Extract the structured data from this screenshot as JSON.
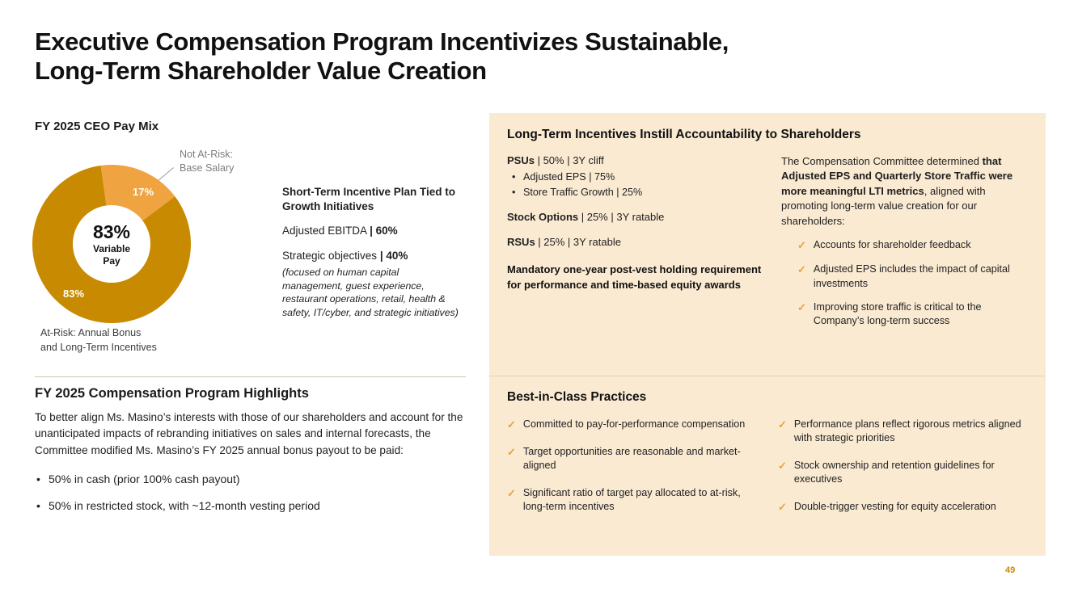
{
  "colors": {
    "gold_dark": "#C88A00",
    "gold_light": "#F0A441",
    "panel_bg": "#FAEAD2",
    "check": "#E8A33D"
  },
  "slide": {
    "title_line1": "Executive Compensation Program Incentivizes Sustainable,",
    "title_line2": "Long-Term Shareholder Value Creation",
    "page_number": "49"
  },
  "pay_mix": {
    "heading": "FY 2025 CEO Pay Mix",
    "not_at_risk_label": "Not At-Risk:\nBase Salary",
    "at_risk_label": "At-Risk: Annual Bonus\nand Long-Term Incentives",
    "slice_small_pct": "17%",
    "slice_main_pct": "83%",
    "center_value": "83%",
    "center_caption": "Variable\nPay"
  },
  "chart_data": {
    "type": "pie",
    "title": "FY 2025 CEO Pay Mix",
    "labels": [
      "At-Risk: Annual Bonus and Long-Term Incentives",
      "Not At-Risk: Base Salary"
    ],
    "values": [
      83,
      17
    ],
    "colors": [
      "#C88A00",
      "#F0A441"
    ],
    "donut": true,
    "center_text": "83% Variable Pay",
    "legend_position": "none"
  },
  "short_term_plan": {
    "heading": "Short-Term Incentive Plan Tied to Growth Initiatives",
    "items": [
      {
        "label": "Adjusted EBITDA ",
        "bold": "| 60%"
      },
      {
        "label": "Strategic objectives ",
        "bold": "| 40%"
      }
    ],
    "note": "(focused on human capital management, guest experience, restaurant operations, retail, health & safety, IT/cyber, and strategic initiatives)"
  },
  "highlights": {
    "heading": "FY 2025 Compensation Program Highlights",
    "intro": "To better align Ms. Masino’s interests with those of our shareholders and account for the unanticipated impacts of rebranding initiatives on sales and internal forecasts, the Committee modified Ms. Masino’s FY 2025 annual bonus payout to be paid:",
    "bullets": [
      "50% in cash (prior 100% cash payout)",
      "50% in restricted stock, with ~12-month vesting period"
    ]
  },
  "lti_panel": {
    "heading": "Long-Term Incentives Instill Accountability to Shareholders",
    "psus_label": "PSUs",
    "psus_rest": " | 50%  |  3Y cliff",
    "psu_bullets": [
      "Adjusted EPS | 75%",
      "Store Traffic Growth | 25%"
    ],
    "options_label": "Stock Options",
    "options_rest": " | 25% | 3Y ratable",
    "rsus_label": "RSUs",
    "rsus_rest": " | 25% | 3Y ratable",
    "mandatory_note": "Mandatory one-year post-vest holding requirement for performance and time-based equity awards",
    "committee_pre": "The Compensation Committee determined ",
    "committee_bold": "that Adjusted EPS and Quarterly Store Traffic were more meaningful LTI metrics",
    "committee_post": ", aligned with promoting long-term value creation for our shareholders:",
    "check_glyph": "✓",
    "checks": [
      "Accounts for shareholder feedback",
      "Adjusted EPS includes the impact of capital investments",
      "Improving store traffic is critical to the Company’s long-term success"
    ]
  },
  "best_practices": {
    "heading": "Best-in-Class Practices",
    "left_checks": [
      "Committed to pay-for-performance compensation",
      "Target opportunities are reasonable and market-aligned",
      "Significant ratio of target pay allocated to at-risk, long-term incentives"
    ],
    "right_checks": [
      "Performance plans reflect rigorous metrics aligned with strategic priorities",
      "Stock ownership and retention guidelines for executives",
      "Double-trigger vesting for equity acceleration"
    ]
  }
}
